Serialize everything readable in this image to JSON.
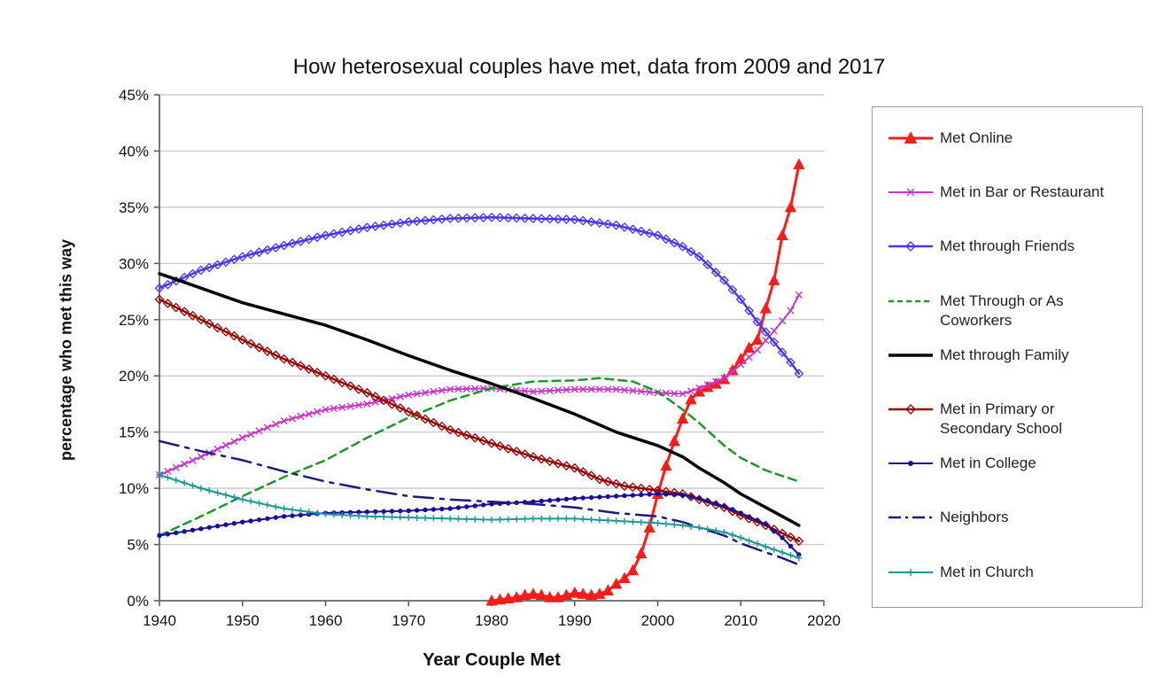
{
  "chart_data": {
    "type": "line",
    "title": "How heterosexual couples have met, data from 2009 and 2017",
    "xlabel": "Year Couple Met",
    "ylabel": "percentage who met this way",
    "xlim": [
      1940,
      2020
    ],
    "ylim": [
      0,
      45
    ],
    "x_ticks": [
      "1940",
      "1950",
      "1960",
      "1970",
      "1980",
      "1990",
      "2000",
      "2010",
      "2020"
    ],
    "y_ticks": [
      "0%",
      "5%",
      "10%",
      "15%",
      "20%",
      "25%",
      "30%",
      "35%",
      "40%",
      "45%"
    ],
    "grid": "horizontal",
    "legend_position": "right",
    "series": [
      {
        "name": "Met Online",
        "color": "#ff1a1a",
        "style": "solid",
        "width": 3,
        "marker": "triangle",
        "marker_step": 1,
        "points": [
          [
            1980,
            0
          ],
          [
            1981,
            0.1
          ],
          [
            1982,
            0.2
          ],
          [
            1983,
            0.3
          ],
          [
            1984,
            0.5
          ],
          [
            1985,
            0.6
          ],
          [
            1986,
            0.5
          ],
          [
            1987,
            0.3
          ],
          [
            1988,
            0.3
          ],
          [
            1989,
            0.5
          ],
          [
            1990,
            0.7
          ],
          [
            1991,
            0.6
          ],
          [
            1992,
            0.5
          ],
          [
            1993,
            0.6
          ],
          [
            1994,
            0.9
          ],
          [
            1995,
            1.5
          ],
          [
            1996,
            2.0
          ],
          [
            1997,
            2.7
          ],
          [
            1998,
            4.2
          ],
          [
            1999,
            6.5
          ],
          [
            2000,
            9.5
          ],
          [
            2001,
            12.0
          ],
          [
            2002,
            14.2
          ],
          [
            2003,
            16.2
          ],
          [
            2004,
            17.9
          ],
          [
            2005,
            18.6
          ],
          [
            2006,
            19.0
          ],
          [
            2007,
            19.3
          ],
          [
            2008,
            19.7
          ],
          [
            2009,
            20.5
          ],
          [
            2010,
            21.5
          ],
          [
            2011,
            22.5
          ],
          [
            2012,
            23.2
          ],
          [
            2013,
            26.0
          ],
          [
            2014,
            28.5
          ],
          [
            2015,
            32.5
          ],
          [
            2016,
            35.0
          ],
          [
            2017,
            38.8
          ]
        ]
      },
      {
        "name": "Met in Bar or Restaurant",
        "color": "#cc33cc",
        "style": "solid",
        "width": 2,
        "marker": "x",
        "marker_step": 1,
        "points": [
          [
            1940,
            11.2
          ],
          [
            1945,
            12.8
          ],
          [
            1950,
            14.5
          ],
          [
            1955,
            16.0
          ],
          [
            1960,
            17.0
          ],
          [
            1965,
            17.5
          ],
          [
            1970,
            18.3
          ],
          [
            1975,
            18.8
          ],
          [
            1980,
            18.9
          ],
          [
            1985,
            18.6
          ],
          [
            1990,
            18.8
          ],
          [
            1995,
            18.8
          ],
          [
            2000,
            18.5
          ],
          [
            2003,
            18.4
          ],
          [
            2005,
            18.9
          ],
          [
            2008,
            19.8
          ],
          [
            2010,
            21.0
          ],
          [
            2012,
            22.3
          ],
          [
            2014,
            24.0
          ],
          [
            2016,
            25.8
          ],
          [
            2017,
            27.2
          ]
        ]
      },
      {
        "name": "Met through Friends",
        "color": "#4d33ff",
        "style": "solid",
        "width": 2.5,
        "marker": "diamond",
        "marker_step": 1,
        "points": [
          [
            1940,
            27.8
          ],
          [
            1945,
            29.4
          ],
          [
            1950,
            30.6
          ],
          [
            1955,
            31.6
          ],
          [
            1960,
            32.5
          ],
          [
            1965,
            33.2
          ],
          [
            1970,
            33.7
          ],
          [
            1975,
            34.0
          ],
          [
            1980,
            34.1
          ],
          [
            1985,
            34.0
          ],
          [
            1990,
            33.9
          ],
          [
            1995,
            33.4
          ],
          [
            2000,
            32.5
          ],
          [
            2003,
            31.5
          ],
          [
            2005,
            30.6
          ],
          [
            2008,
            28.5
          ],
          [
            2010,
            26.8
          ],
          [
            2012,
            24.8
          ],
          [
            2014,
            23.0
          ],
          [
            2016,
            21.2
          ],
          [
            2017,
            20.2
          ]
        ]
      },
      {
        "name": "Met Through or As Coworkers",
        "color": "#1a9926",
        "style": "dashed",
        "width": 2.5,
        "marker": "none",
        "marker_step": 1,
        "points": [
          [
            1940,
            5.8
          ],
          [
            1945,
            7.5
          ],
          [
            1950,
            9.3
          ],
          [
            1955,
            11.0
          ],
          [
            1960,
            12.5
          ],
          [
            1965,
            14.5
          ],
          [
            1970,
            16.3
          ],
          [
            1975,
            17.8
          ],
          [
            1980,
            18.9
          ],
          [
            1985,
            19.5
          ],
          [
            1990,
            19.6
          ],
          [
            1993,
            19.8
          ],
          [
            1997,
            19.5
          ],
          [
            2000,
            18.6
          ],
          [
            2003,
            17.0
          ],
          [
            2005,
            15.8
          ],
          [
            2008,
            13.8
          ],
          [
            2010,
            12.7
          ],
          [
            2013,
            11.6
          ],
          [
            2017,
            10.6
          ]
        ]
      },
      {
        "name": "Met through Family",
        "color": "#000000",
        "style": "solid",
        "width": 3.5,
        "marker": "none",
        "marker_step": 1,
        "points": [
          [
            1940,
            29.1
          ],
          [
            1945,
            27.8
          ],
          [
            1950,
            26.5
          ],
          [
            1955,
            25.5
          ],
          [
            1960,
            24.5
          ],
          [
            1965,
            23.2
          ],
          [
            1970,
            21.8
          ],
          [
            1975,
            20.5
          ],
          [
            1980,
            19.3
          ],
          [
            1985,
            18.0
          ],
          [
            1990,
            16.6
          ],
          [
            1995,
            15.0
          ],
          [
            2000,
            13.8
          ],
          [
            2003,
            12.8
          ],
          [
            2005,
            11.8
          ],
          [
            2008,
            10.5
          ],
          [
            2010,
            9.5
          ],
          [
            2013,
            8.3
          ],
          [
            2015,
            7.5
          ],
          [
            2017,
            6.7
          ]
        ]
      },
      {
        "name": "Met in Primary or Secondary School",
        "color": "#990000",
        "style": "solid",
        "width": 2.5,
        "marker": "diamond",
        "marker_step": 1,
        "points": [
          [
            1940,
            26.8
          ],
          [
            1945,
            25.0
          ],
          [
            1950,
            23.2
          ],
          [
            1955,
            21.5
          ],
          [
            1960,
            20.0
          ],
          [
            1965,
            18.5
          ],
          [
            1970,
            16.8
          ],
          [
            1975,
            15.2
          ],
          [
            1980,
            14.0
          ],
          [
            1985,
            12.8
          ],
          [
            1988,
            12.2
          ],
          [
            1990,
            11.8
          ],
          [
            1993,
            10.8
          ],
          [
            1996,
            10.2
          ],
          [
            2000,
            9.8
          ],
          [
            2003,
            9.5
          ],
          [
            2005,
            9.0
          ],
          [
            2008,
            8.3
          ],
          [
            2010,
            7.6
          ],
          [
            2013,
            6.7
          ],
          [
            2015,
            6.0
          ],
          [
            2017,
            5.3
          ]
        ]
      },
      {
        "name": "Met in College",
        "color": "#1a0d99",
        "style": "solid",
        "width": 2,
        "marker": "dot",
        "marker_step": 1,
        "points": [
          [
            1940,
            5.8
          ],
          [
            1945,
            6.4
          ],
          [
            1950,
            7.0
          ],
          [
            1955,
            7.5
          ],
          [
            1960,
            7.8
          ],
          [
            1965,
            7.9
          ],
          [
            1970,
            8.0
          ],
          [
            1975,
            8.2
          ],
          [
            1980,
            8.6
          ],
          [
            1985,
            8.8
          ],
          [
            1990,
            9.1
          ],
          [
            1995,
            9.3
          ],
          [
            2000,
            9.5
          ],
          [
            2003,
            9.4
          ],
          [
            2005,
            9.1
          ],
          [
            2008,
            8.4
          ],
          [
            2010,
            7.8
          ],
          [
            2013,
            6.8
          ],
          [
            2015,
            5.6
          ],
          [
            2017,
            4.1
          ]
        ]
      },
      {
        "name": "Neighbors",
        "color": "#1a1a80",
        "style": "dashdot",
        "width": 2.5,
        "marker": "none",
        "marker_step": 1,
        "points": [
          [
            1940,
            14.2
          ],
          [
            1945,
            13.3
          ],
          [
            1950,
            12.5
          ],
          [
            1955,
            11.5
          ],
          [
            1960,
            10.6
          ],
          [
            1965,
            9.9
          ],
          [
            1970,
            9.3
          ],
          [
            1975,
            9.0
          ],
          [
            1980,
            8.8
          ],
          [
            1985,
            8.6
          ],
          [
            1990,
            8.3
          ],
          [
            1995,
            7.8
          ],
          [
            2000,
            7.5
          ],
          [
            2003,
            7.0
          ],
          [
            2005,
            6.5
          ],
          [
            2008,
            5.8
          ],
          [
            2010,
            5.1
          ],
          [
            2013,
            4.3
          ],
          [
            2015,
            3.8
          ],
          [
            2017,
            3.2
          ]
        ]
      },
      {
        "name": "Met in Church",
        "color": "#1a9999",
        "style": "solid",
        "width": 2,
        "marker": "plus",
        "marker_step": 1,
        "points": [
          [
            1940,
            11.2
          ],
          [
            1945,
            10.0
          ],
          [
            1950,
            9.0
          ],
          [
            1955,
            8.2
          ],
          [
            1960,
            7.7
          ],
          [
            1965,
            7.5
          ],
          [
            1970,
            7.4
          ],
          [
            1975,
            7.3
          ],
          [
            1980,
            7.2
          ],
          [
            1985,
            7.3
          ],
          [
            1990,
            7.3
          ],
          [
            1995,
            7.1
          ],
          [
            2000,
            6.9
          ],
          [
            2003,
            6.7
          ],
          [
            2005,
            6.5
          ],
          [
            2008,
            6.1
          ],
          [
            2010,
            5.6
          ],
          [
            2013,
            4.8
          ],
          [
            2015,
            4.3
          ],
          [
            2017,
            3.8
          ]
        ]
      }
    ],
    "legend": [
      {
        "name": "Met Online",
        "lines": [
          "Met Online"
        ]
      },
      {
        "name": "Met in Bar or Restaurant",
        "lines": [
          "Met in Bar or Restaurant"
        ]
      },
      {
        "name": "Met through Friends",
        "lines": [
          "Met through Friends"
        ]
      },
      {
        "name": "Met Through or As Coworkers",
        "lines": [
          "Met Through or As",
          "Coworkers"
        ]
      },
      {
        "name": "Met through Family",
        "lines": [
          "Met through Family"
        ]
      },
      {
        "name": "Met in Primary or Secondary School",
        "lines": [
          "Met in Primary or",
          "Secondary School"
        ]
      },
      {
        "name": "Met in College",
        "lines": [
          "Met in College"
        ]
      },
      {
        "name": "Neighbors",
        "lines": [
          "Neighbors"
        ]
      },
      {
        "name": "Met in Church",
        "lines": [
          "Met in Church"
        ]
      }
    ]
  }
}
